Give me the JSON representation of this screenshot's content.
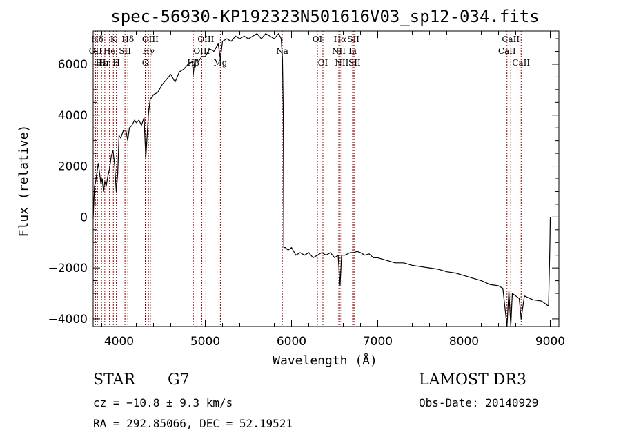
{
  "chart_data": {
    "type": "line",
    "title": "spec-56930-KP192323N501616V03_sp12-034.fits",
    "xlabel": "Wavelength (Å)",
    "ylabel": "Flux (relative)",
    "xlim": [
      3700,
      9100
    ],
    "ylim": [
      -4300,
      7300
    ],
    "x_ticks": [
      4000,
      5000,
      6000,
      7000,
      8000,
      9000
    ],
    "y_ticks": [
      -4000,
      -2000,
      0,
      2000,
      4000,
      6000
    ],
    "series": [
      {
        "name": "flux",
        "x": [
          3700,
          3715,
          3730,
          3745,
          3760,
          3775,
          3790,
          3805,
          3820,
          3835,
          3850,
          3870,
          3890,
          3910,
          3930,
          3950,
          3968,
          3985,
          4000,
          4020,
          4050,
          4080,
          4101,
          4120,
          4150,
          4180,
          4200,
          4230,
          4260,
          4290,
          4310,
          4340,
          4360,
          4400,
          4450,
          4500,
          4550,
          4600,
          4650,
          4700,
          4750,
          4800,
          4850,
          4861,
          4880,
          4920,
          4960,
          5000,
          5050,
          5100,
          5150,
          5175,
          5200,
          5250,
          5300,
          5350,
          5400,
          5450,
          5500,
          5550,
          5600,
          5650,
          5700,
          5750,
          5800,
          5850,
          5880,
          5895,
          5905,
          5910,
          5930,
          5960,
          6000,
          6050,
          6100,
          6150,
          6200,
          6250,
          6300,
          6350,
          6400,
          6450,
          6500,
          6540,
          6563,
          6580,
          6620,
          6680,
          6720,
          6760,
          6800,
          6850,
          6900,
          6950,
          7000,
          7100,
          7200,
          7300,
          7400,
          7500,
          7600,
          7700,
          7800,
          7900,
          8000,
          8100,
          8200,
          8300,
          8400,
          8450,
          8498,
          8520,
          8542,
          8560,
          8600,
          8640,
          8662,
          8700,
          8800,
          8900,
          8980,
          8995,
          9000
        ],
        "values": [
          -50,
          1200,
          1400,
          1800,
          2100,
          1700,
          1300,
          1500,
          1000,
          1400,
          1200,
          1600,
          1900,
          2400,
          2600,
          2000,
          1000,
          1700,
          3200,
          3100,
          3400,
          3400,
          3000,
          3500,
          3600,
          3800,
          3700,
          3800,
          3600,
          3900,
          2300,
          4000,
          4600,
          4800,
          4900,
          5200,
          5400,
          5600,
          5300,
          5700,
          5800,
          6000,
          6100,
          5600,
          6200,
          6100,
          6300,
          6300,
          6600,
          6500,
          6800,
          6200,
          6900,
          7000,
          6900,
          7100,
          7000,
          7100,
          7000,
          7100,
          7200,
          7000,
          7200,
          7100,
          7000,
          7200,
          7000,
          6200,
          4000,
          -1200,
          -1200,
          -1300,
          -1200,
          -1500,
          -1400,
          -1500,
          -1400,
          -1600,
          -1500,
          -1400,
          -1500,
          -1400,
          -1600,
          -1500,
          -2700,
          -1500,
          -1500,
          -1400,
          -1400,
          -1350,
          -1400,
          -1500,
          -1450,
          -1600,
          -1600,
          -1700,
          -1800,
          -1800,
          -1900,
          -1950,
          -2000,
          -2050,
          -2150,
          -2200,
          -2300,
          -2400,
          -2500,
          -2650,
          -2700,
          -2800,
          -4300,
          -2900,
          -4300,
          -3000,
          -3100,
          -3200,
          -4000,
          -3100,
          -3250,
          -3300,
          -3500,
          -1200,
          0
        ]
      }
    ],
    "lines": [
      {
        "label": "Hδ",
        "wl": 3750,
        "pos": 0
      },
      {
        "label": "OII",
        "wl": 3727,
        "pos": 1
      },
      {
        "label": "Hε",
        "wl": 3797,
        "pos": 2
      },
      {
        "label": "He",
        "wl": 3889,
        "pos": 1
      },
      {
        "label": "K",
        "wl": 3934,
        "pos": 0
      },
      {
        "label": "Hη",
        "wl": 3835,
        "pos": 2
      },
      {
        "label": "H",
        "wl": 3969,
        "pos": 2
      },
      {
        "label": "SII",
        "wl": 4069,
        "pos": 1
      },
      {
        "label": "Hδ",
        "wl": 4102,
        "pos": 0
      },
      {
        "label": "OIII",
        "wl": 4363,
        "pos": 0
      },
      {
        "label": "Hγ",
        "wl": 4341,
        "pos": 1
      },
      {
        "label": "G",
        "wl": 4304,
        "pos": 2
      },
      {
        "label": "Hβ",
        "wl": 4861,
        "pos": 2
      },
      {
        "label": "OIII",
        "wl": 5007,
        "pos": 0
      },
      {
        "label": "OIII",
        "wl": 4959,
        "pos": 1
      },
      {
        "label": "Mg",
        "wl": 5175,
        "pos": 2
      },
      {
        "label": "Na",
        "wl": 5893,
        "pos": 1
      },
      {
        "label": "OI",
        "wl": 6300,
        "pos": 0
      },
      {
        "label": "OI",
        "wl": 6364,
        "pos": 2
      },
      {
        "label": "Hα",
        "wl": 6563,
        "pos": 0
      },
      {
        "label": "NII",
        "wl": 6548,
        "pos": 1
      },
      {
        "label": "NII",
        "wl": 6583,
        "pos": 2
      },
      {
        "label": "SII",
        "wl": 6717,
        "pos": 0
      },
      {
        "label": "Li",
        "wl": 6708,
        "pos": 1
      },
      {
        "label": "SII",
        "wl": 6731,
        "pos": 2
      },
      {
        "label": "CaII",
        "wl": 8542,
        "pos": 0
      },
      {
        "label": "CaII",
        "wl": 8498,
        "pos": 1
      },
      {
        "label": "CaII",
        "wl": 8662,
        "pos": 2
      }
    ],
    "line_color": "#8b0000",
    "grid": false
  },
  "info": {
    "class": "STAR",
    "subclass": "G7",
    "cz": "cz = −10.8 ± 9.3 km/s",
    "radec": "RA = 292.85066, DEC =  52.19521",
    "survey": "LAMOST DR3",
    "obsdate": "Obs-Date: 20140929"
  }
}
